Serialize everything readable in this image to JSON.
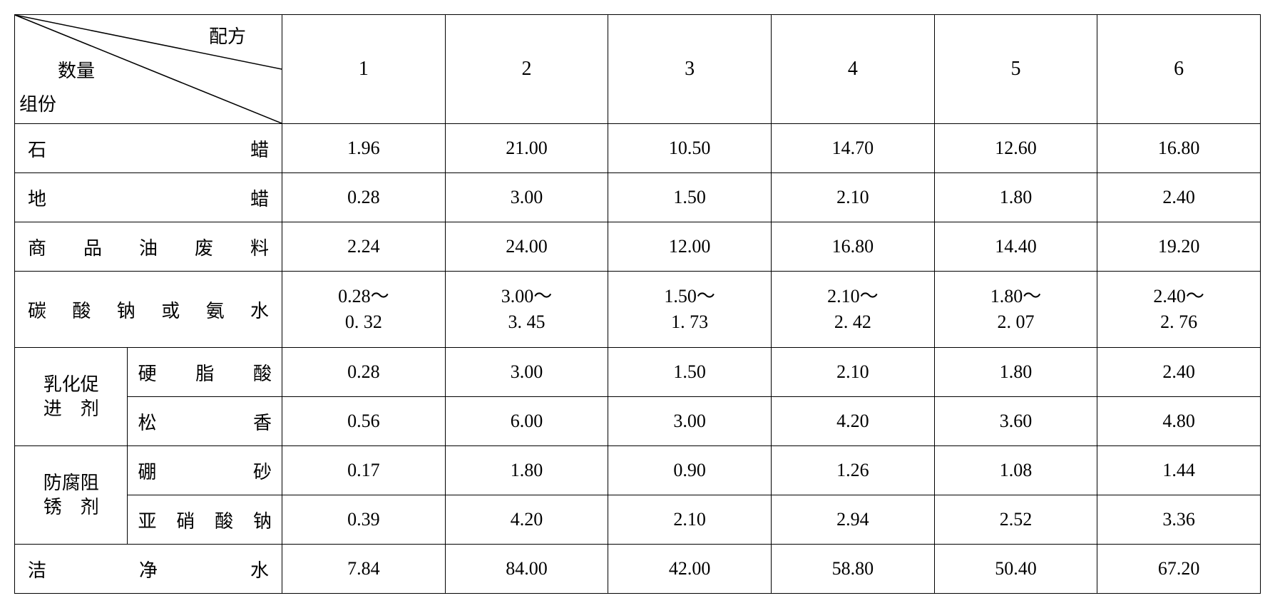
{
  "header": {
    "corner_top": "配方",
    "corner_mid": "数量",
    "corner_bot": "组份",
    "cols": [
      "1",
      "2",
      "3",
      "4",
      "5",
      "6"
    ]
  },
  "rows": {
    "r1": {
      "label": "石　　　　　蜡",
      "vals": [
        "1.96",
        "21.00",
        "10.50",
        "14.70",
        "12.60",
        "16.80"
      ]
    },
    "r2": {
      "label": "地　　　　　蜡",
      "vals": [
        "0.28",
        "3.00",
        "1.50",
        "2.10",
        "1.80",
        "2.40"
      ]
    },
    "r3": {
      "label": "商 品 油 废 料",
      "vals": [
        "2.24",
        "24.00",
        "12.00",
        "16.80",
        "14.40",
        "19.20"
      ]
    },
    "r4": {
      "label": "碳 酸 钠 或 氨 水",
      "vals": [
        "0.28～\n0. 32",
        "3.00～\n3. 45",
        "1.50～\n1. 73",
        "2.10～\n2. 42",
        "1.80～\n2. 07",
        "2.40～\n2. 76"
      ]
    },
    "g1": {
      "group": "乳化促\n进　剂",
      "sub1": {
        "label": "硬脂酸",
        "vals": [
          "0.28",
          "3.00",
          "1.50",
          "2.10",
          "1.80",
          "2.40"
        ]
      },
      "sub2": {
        "label": "松　香",
        "vals": [
          "0.56",
          "6.00",
          "3.00",
          "4.20",
          "3.60",
          "4.80"
        ]
      }
    },
    "g2": {
      "group": "防腐阻\n锈　剂",
      "sub1": {
        "label": "硼　砂",
        "vals": [
          "0.17",
          "1.80",
          "0.90",
          "1.26",
          "1.08",
          "1.44"
        ]
      },
      "sub2": {
        "label": "亚硝酸钠",
        "vals": [
          "0.39",
          "4.20",
          "2.10",
          "2.94",
          "2.52",
          "3.36"
        ]
      }
    },
    "r9": {
      "label": "洁　　净　　水",
      "vals": [
        "7.84",
        "84.00",
        "42.00",
        "58.80",
        "50.40",
        "67.20"
      ]
    }
  }
}
